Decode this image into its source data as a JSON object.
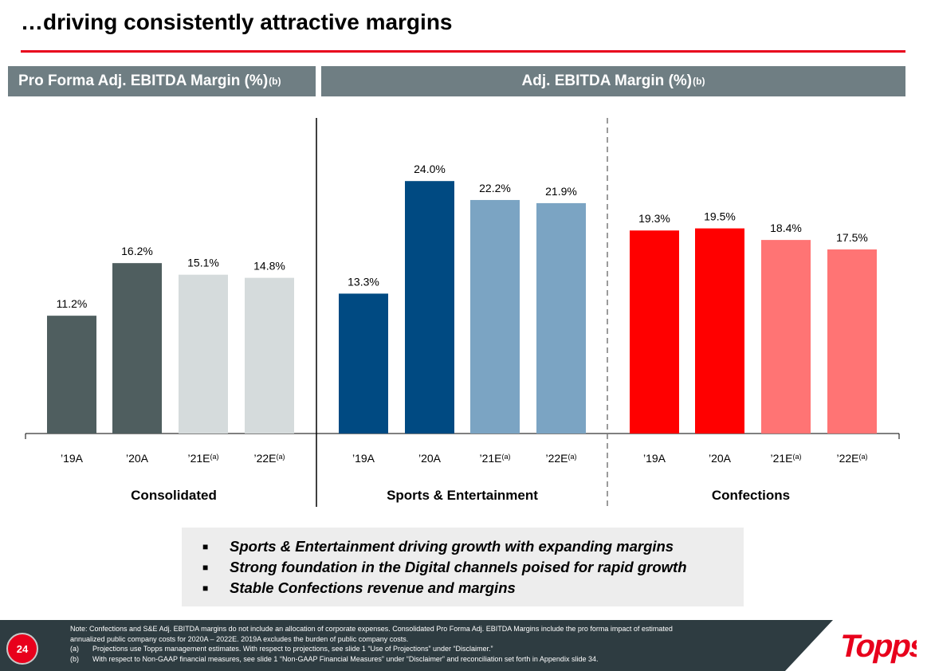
{
  "slide": {
    "title": "…driving consistently attractive margins",
    "page_number": "24",
    "logo_text": "Topps"
  },
  "headers": {
    "left": {
      "label": "Pro Forma Adj. EBITDA Margin (%)",
      "sup": "(b)"
    },
    "right": {
      "label": "Adj. EBITDA Margin (%)",
      "sup": "(b)"
    }
  },
  "chart_data": {
    "type": "bar",
    "groups": [
      {
        "name": "Consolidated",
        "categories": [
          "’19A",
          "’20A",
          "’21E",
          "’22E"
        ],
        "category_superscripts": [
          "",
          "",
          "(a)",
          "(a)"
        ],
        "values": [
          11.2,
          16.2,
          15.1,
          14.8
        ],
        "labels": [
          "11.2%",
          "16.2%",
          "15.1%",
          "14.8%"
        ],
        "colors": [
          "#4f5e5f",
          "#4f5e5f",
          "#d5dbdc",
          "#d5dbdc"
        ]
      },
      {
        "name": "Sports & Entertainment",
        "categories": [
          "’19A",
          "’20A",
          "’21E",
          "’22E"
        ],
        "category_superscripts": [
          "",
          "",
          "(a)",
          "(a)"
        ],
        "values": [
          13.3,
          24.0,
          22.2,
          21.9
        ],
        "labels": [
          "13.3%",
          "24.0%",
          "22.2%",
          "21.9%"
        ],
        "colors": [
          "#004a82",
          "#004a82",
          "#7ba4c3",
          "#7ba4c3"
        ]
      },
      {
        "name": "Confections",
        "categories": [
          "’19A",
          "’20A",
          "’21E",
          "’22E"
        ],
        "category_superscripts": [
          "",
          "",
          "(a)",
          "(a)"
        ],
        "values": [
          19.3,
          19.5,
          18.4,
          17.5
        ],
        "labels": [
          "19.3%",
          "19.5%",
          "18.4%",
          "17.5%"
        ],
        "colors": [
          "#ff0000",
          "#ff0000",
          "#ff7474",
          "#ff7474"
        ]
      }
    ],
    "ylim": [
      0,
      24
    ],
    "grid": false
  },
  "bullets": [
    "Sports & Entertainment driving growth with expanding margins",
    "Strong foundation in the Digital channels poised for rapid growth",
    "Stable Confections revenue and margins"
  ],
  "notes": [
    {
      "mark": "",
      "text": "Note: Confections and S&E Adj. EBITDA margins do not include an allocation of corporate expenses. Consolidated Pro Forma Adj. EBITDA Margins include the pro forma impact of estimated"
    },
    {
      "mark": "",
      "text": "annualized public company costs for 2020A – 2022E. 2019A excludes the burden of public company costs."
    },
    {
      "mark": "(a)",
      "text": "Projections use Topps management estimates. With respect to projections, see slide 1 “Use of Projections” under “Disclaimer.”"
    },
    {
      "mark": "(b)",
      "text": "With respect to Non-GAAP financial measures, see slide 1 “Non-GAAP Financial Measures” under “Disclaimer” and reconciliation set forth in Appendix slide 34."
    }
  ],
  "colors": {
    "accent_red": "#e8001c",
    "header_gray": "#6f7e83",
    "footer_dark": "#2e3c41"
  }
}
